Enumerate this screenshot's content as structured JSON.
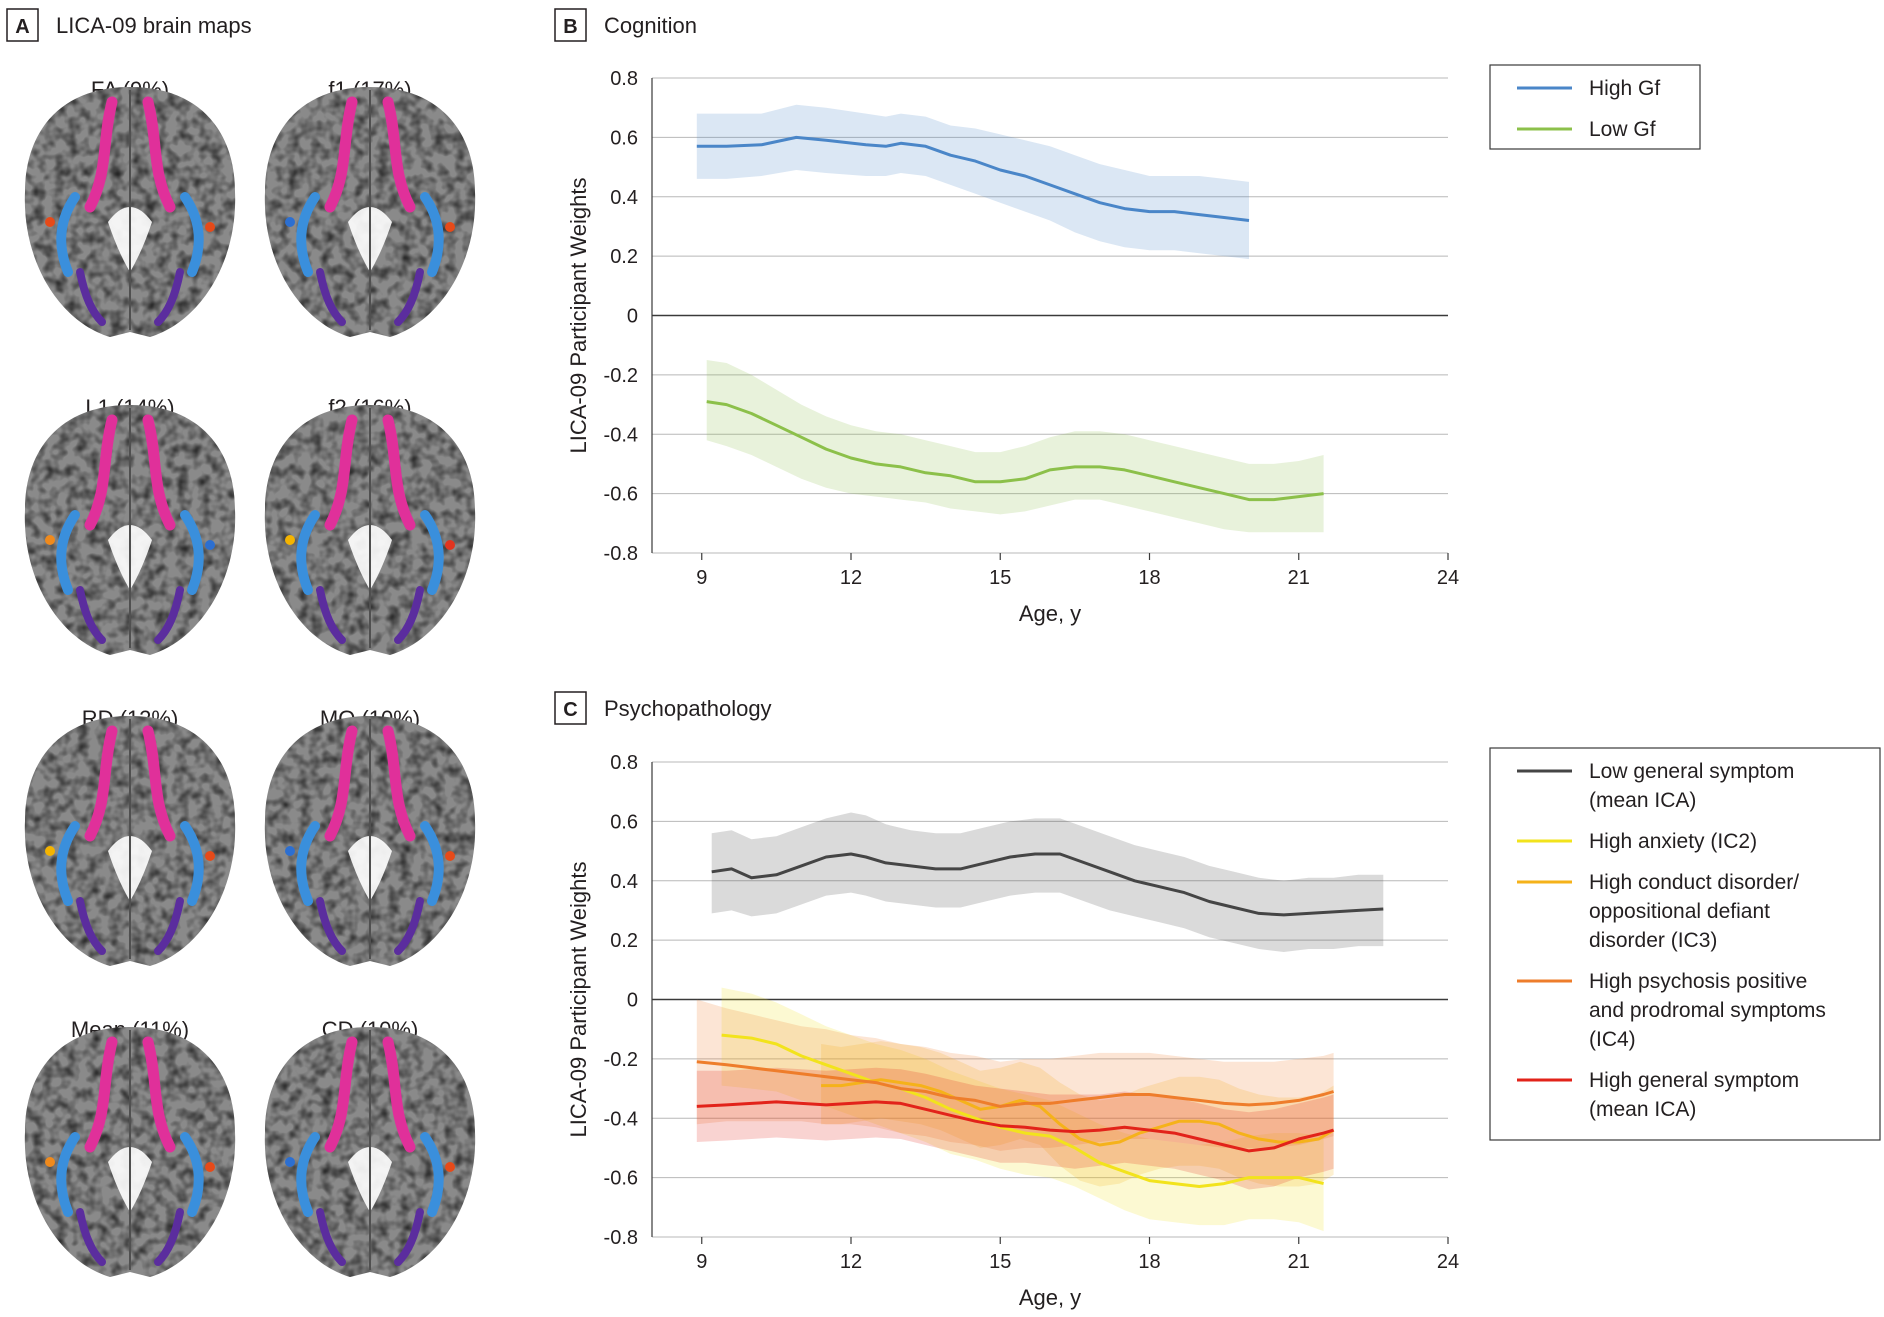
{
  "panel_a": {
    "letter": "A",
    "title": "LICA-09 brain maps",
    "maps": [
      {
        "label": "FA (9%)",
        "spots": [
          "#e64a19",
          "#e64a19"
        ]
      },
      {
        "label": "f1 (17%)",
        "spots": [
          "#2c6fd1",
          "#e64a19"
        ]
      },
      {
        "label": "L1 (14%)",
        "spots": [
          "#f08a1c",
          "#2c6fd1"
        ]
      },
      {
        "label": "f2 (16%)",
        "spots": [
          "#f5b400",
          "#e2341f"
        ]
      },
      {
        "label": "RD (12%)",
        "spots": [
          "#f5b400",
          "#e64a19"
        ]
      },
      {
        "label": "MO (10%)",
        "spots": [
          "#2c6fd1",
          "#e64a19"
        ]
      },
      {
        "label": "Mean (11%)",
        "spots": [
          "#f08a1c",
          "#e64a19"
        ]
      },
      {
        "label": "CD (10%)",
        "spots": [
          "#2c6fd1",
          "#e64a19"
        ]
      }
    ],
    "colors": {
      "magenta": "#e0309a",
      "blue": "#3a8fdc",
      "purple": "#5b2d9e",
      "brain_gray": "#8a8a8a"
    }
  },
  "chart_data": [
    {
      "type": "line",
      "panel": "B",
      "title": "Cognition",
      "xlabel": "Age, y",
      "ylabel": "LICA-09 Participant Weights",
      "xlim": [
        8,
        24
      ],
      "ylim": [
        -0.8,
        0.8
      ],
      "xticks": [
        "9",
        "12",
        "15",
        "18",
        "21",
        "24"
      ],
      "yticks": [
        "0.8",
        "0.6",
        "0.4",
        "0.2",
        "0",
        "-0.2",
        "-0.4",
        "-0.6",
        "-0.8"
      ],
      "grid": "horizontal",
      "legend_position": "top-right",
      "series": [
        {
          "name": "High Gf",
          "color": "#4a86c8",
          "x": [
            8.9,
            9.5,
            10.2,
            10.9,
            11.5,
            12.3,
            12.7,
            13.0,
            13.5,
            14.0,
            14.5,
            15.0,
            15.5,
            16.0,
            16.5,
            17.0,
            17.5,
            18.0,
            18.5,
            19.0,
            19.5,
            20.0
          ],
          "y": [
            0.57,
            0.57,
            0.575,
            0.6,
            0.59,
            0.575,
            0.57,
            0.58,
            0.57,
            0.54,
            0.52,
            0.49,
            0.47,
            0.44,
            0.41,
            0.38,
            0.36,
            0.35,
            0.35,
            0.34,
            0.33,
            0.32
          ],
          "upper": [
            0.68,
            0.68,
            0.68,
            0.71,
            0.7,
            0.68,
            0.67,
            0.68,
            0.67,
            0.64,
            0.63,
            0.61,
            0.59,
            0.57,
            0.54,
            0.51,
            0.49,
            0.47,
            0.47,
            0.47,
            0.46,
            0.45
          ],
          "lower": [
            0.46,
            0.46,
            0.47,
            0.49,
            0.48,
            0.47,
            0.47,
            0.48,
            0.47,
            0.44,
            0.41,
            0.38,
            0.35,
            0.32,
            0.28,
            0.25,
            0.23,
            0.22,
            0.22,
            0.21,
            0.2,
            0.19
          ]
        },
        {
          "name": "Low Gf",
          "color": "#8cc04a",
          "x": [
            9.1,
            9.5,
            10.0,
            10.5,
            11.0,
            11.5,
            12.0,
            12.5,
            13.0,
            13.5,
            14.0,
            14.5,
            15.0,
            15.5,
            16.0,
            16.5,
            17.0,
            17.5,
            18.0,
            18.5,
            19.0,
            19.5,
            20.0,
            20.5,
            21.0,
            21.5
          ],
          "y": [
            -0.29,
            -0.3,
            -0.33,
            -0.37,
            -0.41,
            -0.45,
            -0.48,
            -0.5,
            -0.51,
            -0.53,
            -0.54,
            -0.56,
            -0.56,
            -0.55,
            -0.52,
            -0.51,
            -0.51,
            -0.52,
            -0.54,
            -0.56,
            -0.58,
            -0.6,
            -0.62,
            -0.62,
            -0.61,
            -0.6
          ],
          "upper": [
            -0.15,
            -0.16,
            -0.2,
            -0.25,
            -0.3,
            -0.34,
            -0.37,
            -0.39,
            -0.4,
            -0.42,
            -0.44,
            -0.46,
            -0.46,
            -0.44,
            -0.41,
            -0.39,
            -0.39,
            -0.4,
            -0.42,
            -0.44,
            -0.46,
            -0.48,
            -0.5,
            -0.5,
            -0.49,
            -0.47
          ],
          "lower": [
            -0.42,
            -0.44,
            -0.47,
            -0.51,
            -0.55,
            -0.58,
            -0.6,
            -0.61,
            -0.62,
            -0.63,
            -0.65,
            -0.66,
            -0.67,
            -0.66,
            -0.64,
            -0.62,
            -0.62,
            -0.64,
            -0.66,
            -0.68,
            -0.7,
            -0.72,
            -0.73,
            -0.73,
            -0.73,
            -0.73
          ]
        }
      ]
    },
    {
      "type": "line",
      "panel": "C",
      "title": "Psychopathology",
      "xlabel": "Age, y",
      "ylabel": "LICA-09 Participant Weights",
      "xlim": [
        8,
        24
      ],
      "ylim": [
        -0.8,
        0.8
      ],
      "xticks": [
        "9",
        "12",
        "15",
        "18",
        "21",
        "24"
      ],
      "yticks": [
        "0.8",
        "0.6",
        "0.4",
        "0.2",
        "0",
        "-0.2",
        "-0.4",
        "-0.6",
        "-0.8"
      ],
      "grid": "horizontal",
      "legend_position": "top-right",
      "series": [
        {
          "name": "Low general symptom (mean ICA)",
          "legend_lines": [
            "Low general symptom",
            "(mean ICA)"
          ],
          "color": "#454545",
          "x": [
            9.2,
            9.6,
            10.0,
            10.5,
            11.0,
            11.5,
            12.0,
            12.3,
            12.7,
            13.2,
            13.7,
            14.2,
            14.7,
            15.2,
            15.7,
            16.2,
            16.7,
            17.2,
            17.7,
            18.2,
            18.7,
            19.2,
            19.7,
            20.2,
            20.7,
            21.2,
            21.7,
            22.2,
            22.7
          ],
          "y": [
            0.43,
            0.44,
            0.41,
            0.42,
            0.45,
            0.48,
            0.49,
            0.48,
            0.46,
            0.45,
            0.44,
            0.44,
            0.46,
            0.48,
            0.49,
            0.49,
            0.46,
            0.43,
            0.4,
            0.38,
            0.36,
            0.33,
            0.31,
            0.29,
            0.285,
            0.29,
            0.295,
            0.3,
            0.305
          ],
          "upper": [
            0.56,
            0.57,
            0.54,
            0.55,
            0.58,
            0.61,
            0.63,
            0.62,
            0.59,
            0.57,
            0.56,
            0.56,
            0.58,
            0.6,
            0.61,
            0.61,
            0.58,
            0.55,
            0.52,
            0.5,
            0.48,
            0.45,
            0.43,
            0.41,
            0.4,
            0.41,
            0.41,
            0.42,
            0.42
          ],
          "lower": [
            0.29,
            0.3,
            0.28,
            0.29,
            0.32,
            0.35,
            0.36,
            0.35,
            0.33,
            0.32,
            0.31,
            0.31,
            0.33,
            0.35,
            0.36,
            0.36,
            0.33,
            0.3,
            0.28,
            0.26,
            0.24,
            0.21,
            0.19,
            0.17,
            0.16,
            0.17,
            0.17,
            0.18,
            0.18
          ]
        },
        {
          "name": "High anxiety (IC2)",
          "legend_lines": [
            "High anxiety (IC2)"
          ],
          "color": "#f2e31c",
          "x": [
            9.4,
            10.0,
            10.5,
            11.0,
            11.5,
            12.0,
            12.5,
            13.0,
            13.5,
            14.0,
            14.5,
            15.0,
            15.5,
            16.0,
            16.5,
            17.0,
            17.5,
            18.0,
            18.5,
            19.0,
            19.5,
            20.0,
            20.5,
            21.0,
            21.5
          ],
          "y": [
            -0.12,
            -0.13,
            -0.15,
            -0.19,
            -0.22,
            -0.25,
            -0.28,
            -0.3,
            -0.33,
            -0.37,
            -0.4,
            -0.43,
            -0.45,
            -0.46,
            -0.5,
            -0.55,
            -0.58,
            -0.61,
            -0.62,
            -0.63,
            -0.62,
            -0.6,
            -0.6,
            -0.6,
            -0.62
          ],
          "upper": [
            0.04,
            0.02,
            -0.01,
            -0.05,
            -0.09,
            -0.12,
            -0.15,
            -0.17,
            -0.2,
            -0.24,
            -0.27,
            -0.3,
            -0.32,
            -0.34,
            -0.38,
            -0.42,
            -0.45,
            -0.47,
            -0.48,
            -0.49,
            -0.48,
            -0.46,
            -0.45,
            -0.45,
            -0.46
          ],
          "lower": [
            -0.29,
            -0.3,
            -0.31,
            -0.34,
            -0.36,
            -0.39,
            -0.42,
            -0.45,
            -0.48,
            -0.52,
            -0.54,
            -0.57,
            -0.59,
            -0.6,
            -0.63,
            -0.67,
            -0.71,
            -0.74,
            -0.75,
            -0.76,
            -0.76,
            -0.74,
            -0.74,
            -0.75,
            -0.78
          ]
        },
        {
          "name": "High conduct disorder/ oppositional defiant disorder (IC3)",
          "legend_lines": [
            "High conduct disorder/",
            "oppositional defiant",
            "disorder (IC3)"
          ],
          "color": "#f5b21a",
          "x": [
            11.4,
            11.8,
            12.2,
            12.6,
            13.0,
            13.4,
            13.8,
            14.2,
            14.6,
            15.0,
            15.4,
            15.8,
            16.2,
            16.6,
            17.0,
            17.4,
            17.8,
            18.2,
            18.6,
            19.0,
            19.4,
            19.8,
            20.2,
            20.6,
            21.0,
            21.4,
            21.7
          ],
          "y": [
            -0.29,
            -0.29,
            -0.28,
            -0.27,
            -0.28,
            -0.29,
            -0.31,
            -0.34,
            -0.37,
            -0.36,
            -0.34,
            -0.36,
            -0.42,
            -0.47,
            -0.49,
            -0.48,
            -0.45,
            -0.43,
            -0.41,
            -0.41,
            -0.42,
            -0.45,
            -0.47,
            -0.48,
            -0.48,
            -0.47,
            -0.44
          ],
          "upper": [
            -0.15,
            -0.16,
            -0.15,
            -0.14,
            -0.15,
            -0.16,
            -0.18,
            -0.21,
            -0.24,
            -0.23,
            -0.21,
            -0.23,
            -0.28,
            -0.32,
            -0.34,
            -0.33,
            -0.3,
            -0.28,
            -0.26,
            -0.26,
            -0.27,
            -0.3,
            -0.32,
            -0.33,
            -0.33,
            -0.32,
            -0.29
          ],
          "lower": [
            -0.42,
            -0.42,
            -0.41,
            -0.4,
            -0.41,
            -0.42,
            -0.44,
            -0.47,
            -0.5,
            -0.49,
            -0.47,
            -0.49,
            -0.56,
            -0.61,
            -0.63,
            -0.62,
            -0.59,
            -0.57,
            -0.56,
            -0.56,
            -0.57,
            -0.6,
            -0.62,
            -0.63,
            -0.63,
            -0.62,
            -0.59
          ]
        },
        {
          "name": "High psychosis positive and prodromal symptoms (IC4)",
          "legend_lines": [
            "High psychosis positive",
            "and prodromal symptoms",
            "(IC4)"
          ],
          "color": "#ee7d2b",
          "x": [
            8.9,
            9.5,
            10.0,
            10.5,
            11.0,
            11.5,
            12.0,
            12.5,
            13.0,
            13.5,
            14.0,
            14.5,
            15.0,
            15.5,
            16.0,
            16.5,
            17.0,
            17.5,
            18.0,
            18.5,
            19.0,
            19.5,
            20.0,
            20.5,
            21.0,
            21.5,
            21.7
          ],
          "y": [
            -0.21,
            -0.22,
            -0.23,
            -0.24,
            -0.25,
            -0.26,
            -0.27,
            -0.28,
            -0.3,
            -0.31,
            -0.33,
            -0.34,
            -0.36,
            -0.35,
            -0.35,
            -0.34,
            -0.33,
            -0.32,
            -0.32,
            -0.33,
            -0.34,
            -0.35,
            -0.355,
            -0.35,
            -0.34,
            -0.32,
            -0.31
          ],
          "upper": [
            0.0,
            -0.03,
            -0.05,
            -0.07,
            -0.09,
            -0.1,
            -0.12,
            -0.13,
            -0.15,
            -0.16,
            -0.18,
            -0.19,
            -0.21,
            -0.2,
            -0.2,
            -0.19,
            -0.18,
            -0.18,
            -0.18,
            -0.19,
            -0.2,
            -0.21,
            -0.21,
            -0.21,
            -0.2,
            -0.19,
            -0.18
          ],
          "lower": [
            -0.42,
            -0.41,
            -0.41,
            -0.41,
            -0.41,
            -0.42,
            -0.42,
            -0.43,
            -0.45,
            -0.46,
            -0.48,
            -0.49,
            -0.51,
            -0.5,
            -0.5,
            -0.49,
            -0.48,
            -0.47,
            -0.47,
            -0.48,
            -0.49,
            -0.5,
            -0.5,
            -0.5,
            -0.49,
            -0.47,
            -0.46
          ]
        },
        {
          "name": "High general symptom (mean ICA)",
          "legend_lines": [
            "High general symptom",
            "(mean ICA)"
          ],
          "color": "#e2231a",
          "x": [
            8.9,
            9.5,
            10.0,
            10.5,
            11.0,
            11.5,
            12.0,
            12.5,
            13.0,
            13.5,
            14.0,
            14.5,
            15.0,
            15.5,
            16.0,
            16.5,
            17.0,
            17.5,
            18.0,
            18.5,
            19.0,
            19.5,
            20.0,
            20.5,
            21.0,
            21.5,
            21.7
          ],
          "y": [
            -0.36,
            -0.355,
            -0.35,
            -0.345,
            -0.35,
            -0.355,
            -0.35,
            -0.345,
            -0.35,
            -0.37,
            -0.39,
            -0.41,
            -0.425,
            -0.43,
            -0.44,
            -0.445,
            -0.44,
            -0.43,
            -0.44,
            -0.45,
            -0.47,
            -0.49,
            -0.51,
            -0.5,
            -0.47,
            -0.45,
            -0.44
          ],
          "upper": [
            -0.24,
            -0.24,
            -0.235,
            -0.23,
            -0.235,
            -0.24,
            -0.235,
            -0.23,
            -0.235,
            -0.25,
            -0.27,
            -0.29,
            -0.3,
            -0.31,
            -0.32,
            -0.32,
            -0.32,
            -0.31,
            -0.32,
            -0.33,
            -0.35,
            -0.37,
            -0.38,
            -0.37,
            -0.35,
            -0.33,
            -0.32
          ],
          "lower": [
            -0.48,
            -0.475,
            -0.47,
            -0.465,
            -0.47,
            -0.475,
            -0.47,
            -0.465,
            -0.47,
            -0.49,
            -0.51,
            -0.53,
            -0.55,
            -0.55,
            -0.56,
            -0.57,
            -0.56,
            -0.55,
            -0.56,
            -0.57,
            -0.59,
            -0.61,
            -0.64,
            -0.63,
            -0.6,
            -0.58,
            -0.57
          ]
        }
      ]
    }
  ]
}
